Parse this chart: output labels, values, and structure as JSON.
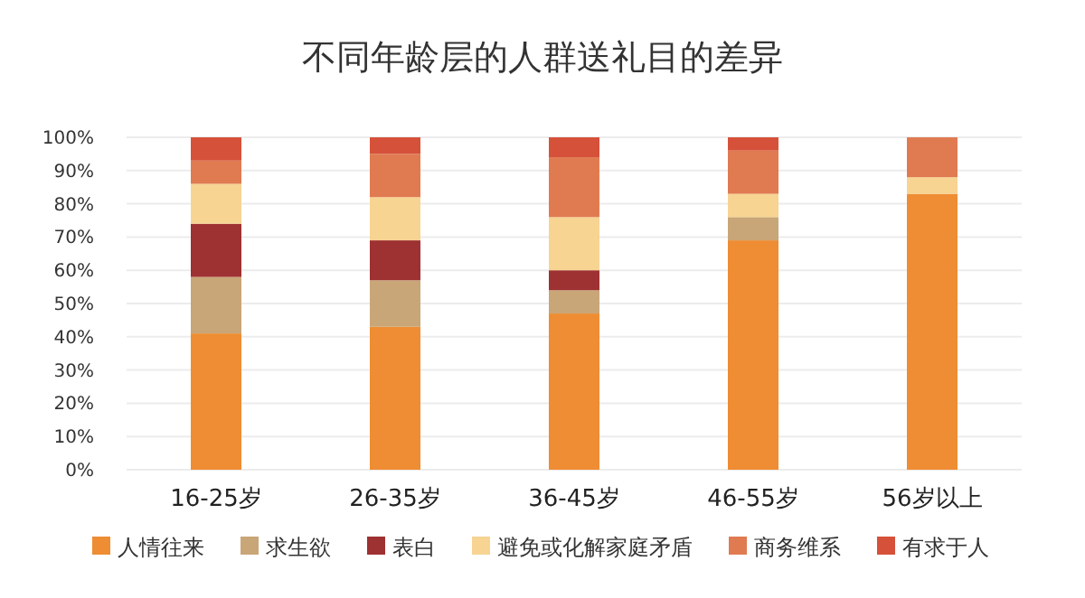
{
  "chart_data": {
    "type": "bar",
    "title": "不同年龄层的人群送礼目的差异",
    "stacked": true,
    "grid": "y",
    "legend": "bottom",
    "categories": [
      "16-25岁",
      "26-35岁",
      "36-45岁",
      "46-55岁",
      "56岁以上"
    ],
    "series": [
      {
        "name": "人情往来",
        "color": "#ee8d33",
        "values": [
          41,
          43,
          47,
          69,
          83
        ]
      },
      {
        "name": "求生欲",
        "color": "#c9a677",
        "values": [
          17,
          14,
          7,
          7,
          0
        ]
      },
      {
        "name": "表白",
        "color": "#9e3132",
        "values": [
          16,
          12,
          6,
          0,
          0
        ]
      },
      {
        "name": "避免或化解家庭矛盾",
        "color": "#f7d492",
        "values": [
          12,
          13,
          16,
          7,
          5
        ]
      },
      {
        "name": "商务维系",
        "color": "#e07b51",
        "values": [
          7,
          13,
          18,
          13,
          12
        ]
      },
      {
        "name": "有求于人",
        "color": "#d6513a",
        "values": [
          7,
          5,
          6,
          4,
          0
        ]
      }
    ],
    "ylim": [
      0,
      100
    ],
    "yticks": [
      {
        "value": 0,
        "label": "0%"
      },
      {
        "value": 10,
        "label": "10%"
      },
      {
        "value": 20,
        "label": "20%"
      },
      {
        "value": 30,
        "label": "30%"
      },
      {
        "value": 40,
        "label": "40%"
      },
      {
        "value": 50,
        "label": "50%"
      },
      {
        "value": 60,
        "label": "60%"
      },
      {
        "value": 70,
        "label": "70%"
      },
      {
        "value": 80,
        "label": "80%"
      },
      {
        "value": 90,
        "label": "90%"
      },
      {
        "value": 100,
        "label": "100%"
      }
    ]
  }
}
